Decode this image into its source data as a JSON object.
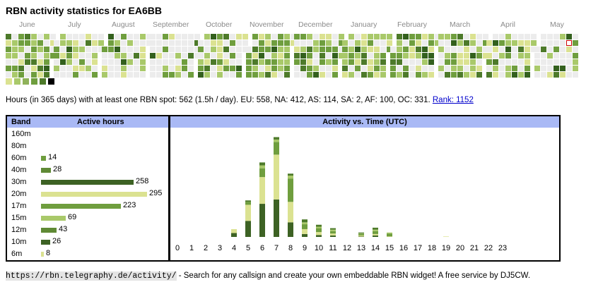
{
  "page": {
    "title": "RBN activity statistics for EA6BB"
  },
  "calendar": {
    "months": [
      "June",
      "July",
      "August",
      "September",
      "October",
      "November",
      "December",
      "January",
      "February",
      "March",
      "April",
      "May"
    ],
    "colors": [
      "#ececec",
      "#dbe291",
      "#a9c96a",
      "#6f9e3e",
      "#4d7a2a",
      "#33601d"
    ],
    "today_outline": "#cc0000",
    "legend_colors": [
      "#dbe291",
      "#a9c96a",
      "#8fb25a",
      "#6f9e3e",
      "#4d7a2a",
      "#000000"
    ]
  },
  "summary": {
    "text": "Hours (in 365 days) with at least one RBN spot: 562 (1.5h / day). EU: 558, NA: 412, AS: 114, SA: 2, AF: 100, OC: 331.",
    "rank_label": "Rank: 1152"
  },
  "band_table": {
    "header_band": "Band",
    "header_active": "Active hours",
    "rows": [
      {
        "band": "160m",
        "hours": null,
        "color": ""
      },
      {
        "band": "80m",
        "hours": null,
        "color": ""
      },
      {
        "band": "60m",
        "hours": 14,
        "color": "#6f9e3e"
      },
      {
        "band": "40m",
        "hours": 28,
        "color": "#5f8a35"
      },
      {
        "band": "30m",
        "hours": 258,
        "color": "#3d6224"
      },
      {
        "band": "20m",
        "hours": 295,
        "color": "#dbe291"
      },
      {
        "band": "17m",
        "hours": 223,
        "color": "#6f9e3e"
      },
      {
        "band": "15m",
        "hours": 69,
        "color": "#a9c96a"
      },
      {
        "band": "12m",
        "hours": 43,
        "color": "#5f8a35"
      },
      {
        "band": "10m",
        "hours": 26,
        "color": "#3d6224"
      },
      {
        "band": "6m",
        "hours": 8,
        "color": "#dbe291"
      }
    ]
  },
  "chart_data": {
    "type": "bar",
    "title": "Activity vs. Time (UTC)",
    "categories": [
      "0",
      "1",
      "2",
      "3",
      "4",
      "5",
      "6",
      "7",
      "8",
      "9",
      "10",
      "11",
      "12",
      "13",
      "14",
      "15",
      "16",
      "17",
      "18",
      "19",
      "20",
      "21",
      "22",
      "23"
    ],
    "series": [
      {
        "color": "#3d6224",
        "values": [
          0,
          0,
          0,
          0,
          8,
          33,
          68,
          77,
          30,
          6,
          4,
          3,
          0,
          1,
          3,
          0,
          0,
          0,
          0,
          0,
          0,
          0,
          0,
          0
        ]
      },
      {
        "color": "#dbe291",
        "values": [
          0,
          0,
          0,
          0,
          8,
          33,
          55,
          92,
          42,
          10,
          6,
          4,
          0,
          2,
          3,
          1,
          0,
          0,
          0,
          1,
          0,
          0,
          0,
          0
        ]
      },
      {
        "color": "#6f9e3e",
        "values": [
          0,
          0,
          0,
          0,
          0,
          6,
          18,
          26,
          48,
          10,
          8,
          5,
          0,
          3,
          6,
          6,
          0,
          0,
          0,
          0,
          0,
          0,
          0,
          0
        ]
      },
      {
        "color": "#a9c96a",
        "values": [
          0,
          0,
          0,
          0,
          0,
          0,
          6,
          5,
          6,
          4,
          3,
          3,
          0,
          1,
          3,
          2,
          0,
          0,
          0,
          0,
          0,
          0,
          0,
          0
        ]
      },
      {
        "color": "#4d7a2a",
        "values": [
          0,
          0,
          0,
          0,
          0,
          3,
          6,
          5,
          4,
          6,
          4,
          3,
          0,
          2,
          4,
          0,
          0,
          0,
          0,
          0,
          0,
          0,
          0,
          0
        ]
      }
    ],
    "ylim": [
      0,
      210
    ]
  },
  "footer": {
    "url": "https://rbn.telegraphy.de/activity/",
    "text": " - Search for any callsign and create your own embeddable RBN widget! A free service by DJ5CW."
  }
}
